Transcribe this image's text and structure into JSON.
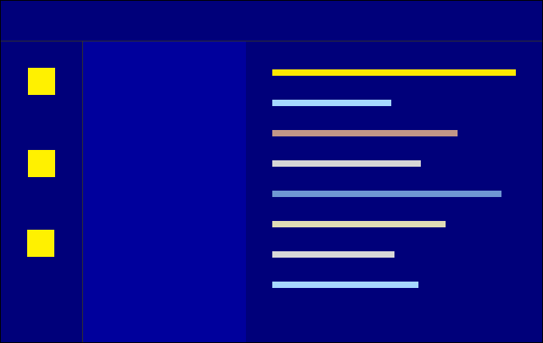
{
  "colors": {
    "window_bg": "#00007a",
    "nav_panel_bg": "#00009c",
    "border": "#303030",
    "icon_fill": "#fff100"
  },
  "sidebar": {
    "items": [
      {
        "icon": "square-icon",
        "color": "#fff100"
      },
      {
        "icon": "square-icon",
        "color": "#fff100"
      },
      {
        "icon": "square-icon",
        "color": "#fff100"
      }
    ]
  },
  "content": {
    "items": [
      {
        "color": "#ffe800",
        "fill": 1.0
      },
      {
        "color": "#a6d8ff",
        "fill": 0.49
      },
      {
        "color": "#c29688",
        "fill": 0.76
      },
      {
        "color": "#d6d6d6",
        "fill": 0.61
      },
      {
        "color": "#6f97d3",
        "fill": 0.94
      },
      {
        "color": "#e0dcb6",
        "fill": 0.71
      },
      {
        "color": "#d8d8d8",
        "fill": 0.5
      },
      {
        "color": "#a6d8ff",
        "fill": 0.6
      }
    ]
  }
}
